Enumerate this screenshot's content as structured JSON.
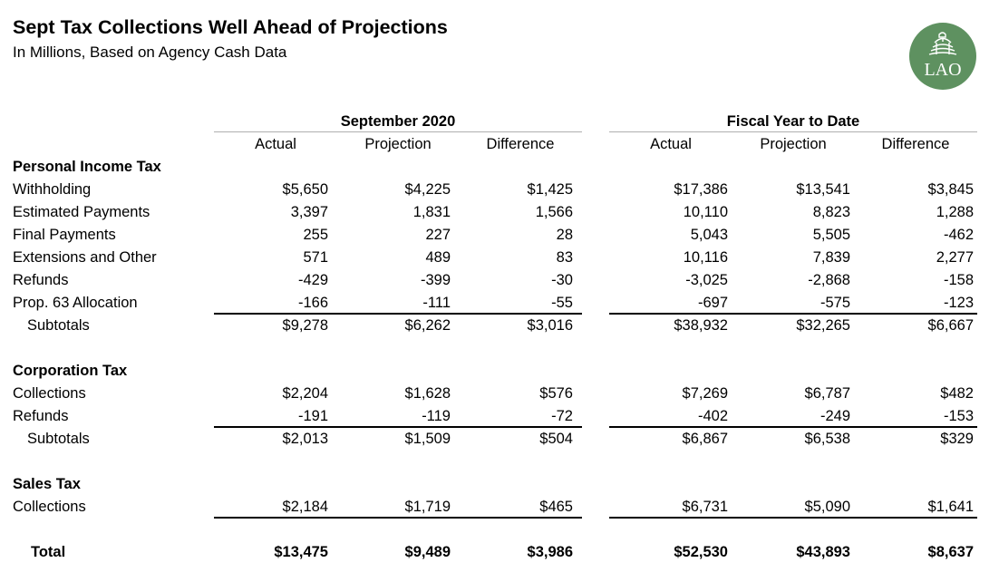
{
  "header": {
    "title": "Sept Tax Collections Well Ahead of Projections",
    "subtitle": "In Millions, Based on Agency Cash Data",
    "logo_text": "LAO",
    "logo_color": "#5e9160"
  },
  "groups": [
    {
      "label": "September 2020",
      "columns": [
        "Actual",
        "Projection",
        "Difference"
      ]
    },
    {
      "label": "Fiscal Year to Date",
      "columns": [
        "Actual",
        "Projection",
        "Difference"
      ]
    }
  ],
  "sections": [
    {
      "heading": "Personal Income Tax",
      "rows": [
        {
          "label": "Withholding",
          "values": [
            "$5,650",
            "$4,225",
            "$1,425",
            "$17,386",
            "$13,541",
            "$3,845"
          ]
        },
        {
          "label": "Estimated Payments",
          "values": [
            "3,397",
            "1,831",
            "1,566",
            "10,110",
            "8,823",
            "1,288"
          ]
        },
        {
          "label": "Final Payments",
          "values": [
            "255",
            "227",
            "28",
            "5,043",
            "5,505",
            "-462"
          ]
        },
        {
          "label": "Extensions and Other",
          "values": [
            "571",
            "489",
            "83",
            "10,116",
            "7,839",
            "2,277"
          ]
        },
        {
          "label": "Refunds",
          "values": [
            "-429",
            "-399",
            "-30",
            "-3,025",
            "-2,868",
            "-158"
          ]
        },
        {
          "label": "Prop. 63 Allocation",
          "values": [
            "-166",
            "-111",
            "-55",
            "-697",
            "-575",
            "-123"
          ]
        }
      ],
      "subtotal": {
        "label": "Subtotals",
        "values": [
          "$9,278",
          "$6,262",
          "$3,016",
          "$38,932",
          "$32,265",
          "$6,667"
        ]
      }
    },
    {
      "heading": "Corporation Tax",
      "rows": [
        {
          "label": "Collections",
          "values": [
            "$2,204",
            "$1,628",
            "$576",
            "$7,269",
            "$6,787",
            "$482"
          ]
        },
        {
          "label": "Refunds",
          "values": [
            "-191",
            "-119",
            "-72",
            "-402",
            "-249",
            "-153"
          ]
        }
      ],
      "subtotal": {
        "label": "Subtotals",
        "values": [
          "$2,013",
          "$1,509",
          "$504",
          "$6,867",
          "$6,538",
          "$329"
        ]
      }
    },
    {
      "heading": "Sales Tax",
      "rows": [
        {
          "label": "Collections",
          "values": [
            "$2,184",
            "$1,719",
            "$465",
            "$6,731",
            "$5,090",
            "$1,641"
          ]
        }
      ]
    }
  ],
  "total": {
    "label": "Total",
    "values": [
      "$13,475",
      "$9,489",
      "$3,986",
      "$52,530",
      "$43,893",
      "$8,637"
    ]
  }
}
